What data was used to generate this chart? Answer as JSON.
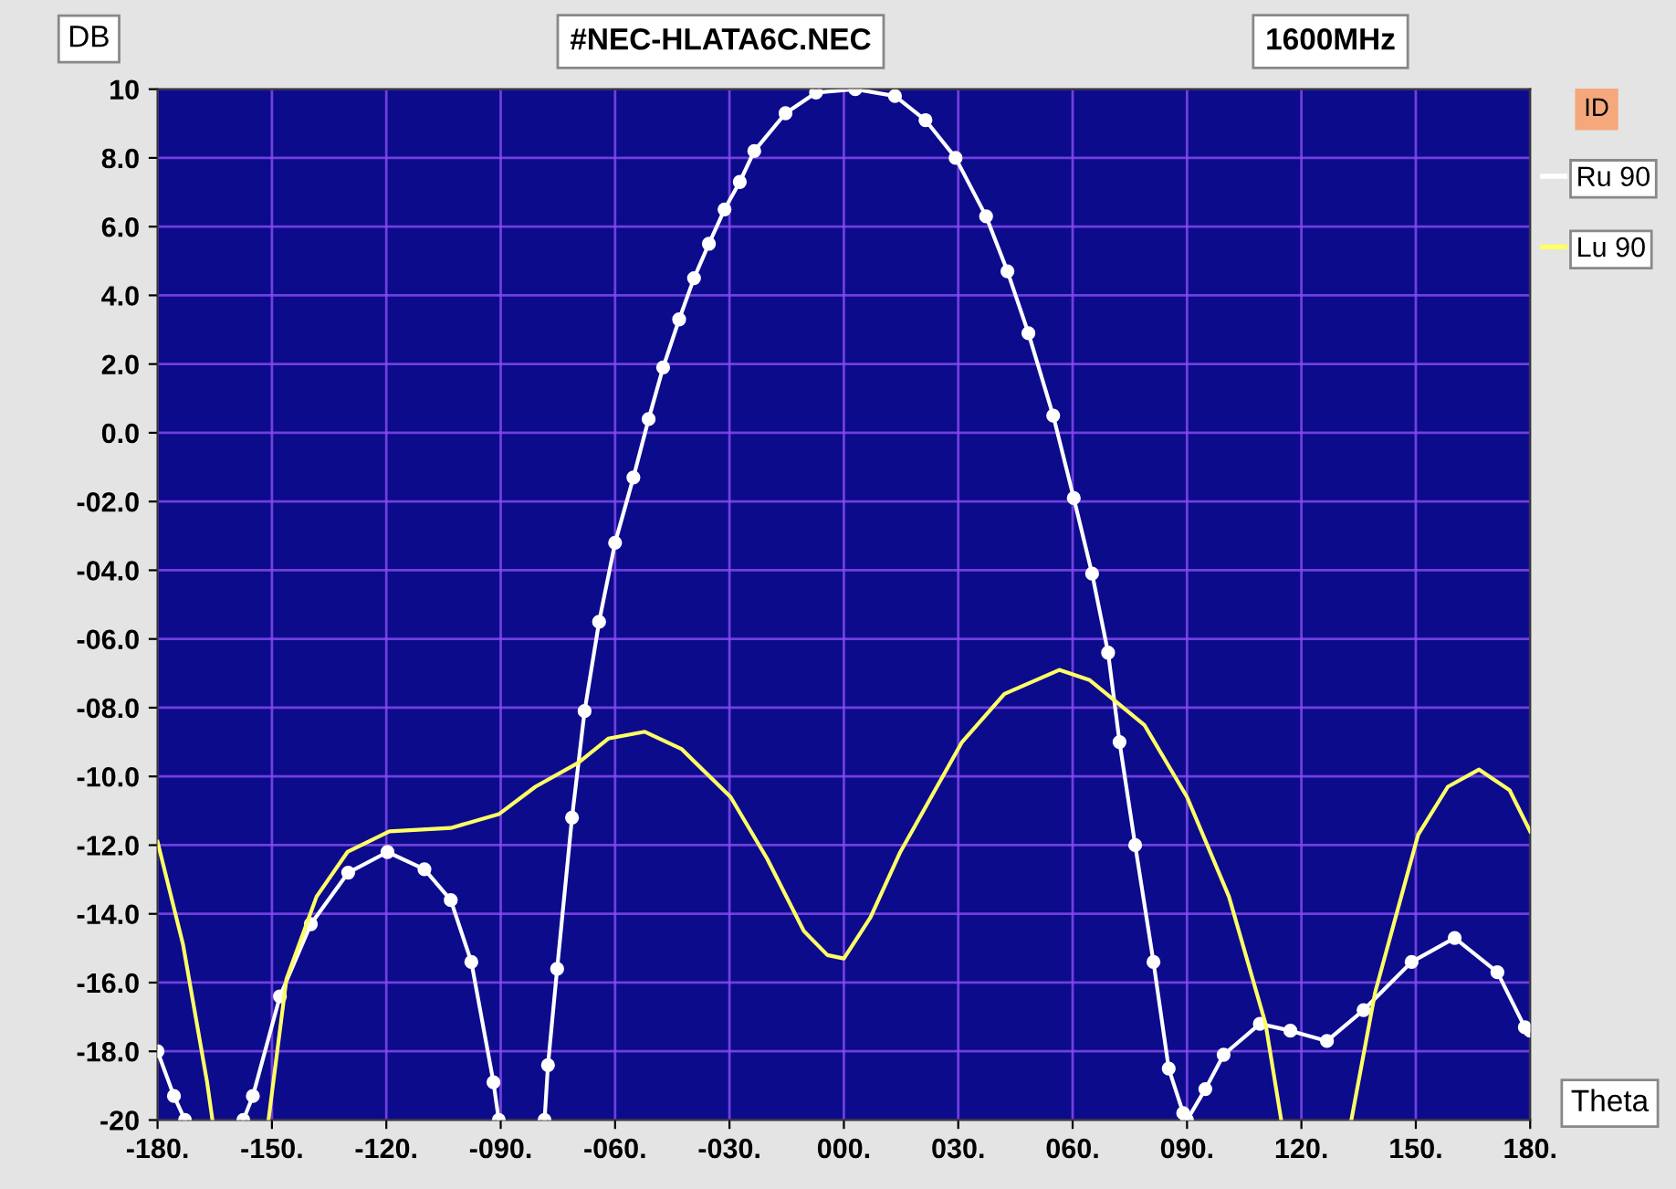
{
  "chart_data": {
    "type": "line",
    "title": "#NEC-HLATA6C.NEC",
    "subtitle": "1600MHz",
    "xlabel": "Theta",
    "ylabel": "DB",
    "legend_title": "ID",
    "xlim": [
      -180,
      180
    ],
    "ylim": [
      -20,
      10
    ],
    "xticks": [
      {
        "value": -180,
        "label": "-180."
      },
      {
        "value": -150,
        "label": "-150."
      },
      {
        "value": -120,
        "label": "-120."
      },
      {
        "value": -90,
        "label": "-090."
      },
      {
        "value": -60,
        "label": "-060."
      },
      {
        "value": -30,
        "label": "-030."
      },
      {
        "value": 0,
        "label": "000."
      },
      {
        "value": 30,
        "label": "030."
      },
      {
        "value": 60,
        "label": "060."
      },
      {
        "value": 90,
        "label": "090."
      },
      {
        "value": 120,
        "label": "120."
      },
      {
        "value": 150,
        "label": "150."
      },
      {
        "value": 180,
        "label": "180."
      }
    ],
    "yticks": [
      10,
      {
        "value": 8,
        "label": "8.0"
      },
      {
        "value": 6,
        "label": "6.0"
      },
      {
        "value": 4,
        "label": "4.0"
      },
      {
        "value": 2,
        "label": "2.0"
      },
      {
        "value": 0,
        "label": "0.0"
      },
      {
        "value": -2,
        "label": "-02.0"
      },
      {
        "value": -4,
        "label": "-04.0"
      },
      {
        "value": -6,
        "label": "-06.0"
      },
      {
        "value": -8,
        "label": "-08.0"
      },
      {
        "value": -10,
        "label": "-10.0"
      },
      {
        "value": -12,
        "label": "-12.0"
      },
      {
        "value": -14,
        "label": "-14.0"
      },
      {
        "value": -16,
        "label": "-16.0"
      },
      {
        "value": -18,
        "label": "-18.0"
      },
      -20
    ],
    "grid": true,
    "legend": "right",
    "series": [
      {
        "name": "Ru 90",
        "color": "#ffffff",
        "marker": "circle",
        "line_style": "solid",
        "x": [
          -180,
          -175.7,
          -172.8,
          -165,
          -157.5,
          -155,
          -147.9,
          -139.8,
          -130,
          -119.7,
          -110,
          -103.1,
          -97.7,
          -91.9,
          -90.5,
          -85,
          -78.5,
          -77.6,
          -75.2,
          -71.3,
          -68,
          -64.2,
          -60,
          -55.2,
          -51.2,
          -47.4,
          -43.2,
          -39.3,
          -35.4,
          -31.3,
          -27.3,
          -23.5,
          -15.3,
          -7.3,
          3,
          13.4,
          21.4,
          29.3,
          37.3,
          42.9,
          48.4,
          54.9,
          60.3,
          65.1,
          69.3,
          72.3,
          76.4,
          81.2,
          85.2,
          89,
          90,
          94.8,
          99.6,
          109.1,
          117.1,
          126.7,
          136.3,
          148.9,
          160.2,
          171.4,
          178.6,
          180
        ],
        "values": [
          -18.0,
          -19.3,
          -20,
          null,
          -20,
          -19.3,
          -16.4,
          -14.3,
          -12.8,
          -12.2,
          -12.7,
          -13.6,
          -15.4,
          -18.9,
          -20,
          null,
          -20,
          -18.4,
          -15.6,
          -11.2,
          -8.1,
          -5.5,
          -3.2,
          -1.3,
          0.4,
          1.9,
          3.3,
          4.5,
          5.5,
          6.5,
          7.3,
          8.2,
          9.3,
          9.9,
          10.0,
          9.8,
          9.1,
          8.0,
          6.3,
          4.7,
          2.9,
          0.5,
          -1.9,
          -4.1,
          -6.4,
          -9.0,
          -12.0,
          -15.4,
          -18.5,
          -19.8,
          -20,
          -19.1,
          -18.1,
          -17.2,
          -17.4,
          -17.7,
          -16.8,
          -15.4,
          -14.7,
          -15.7,
          -17.3,
          -17.4
        ]
      },
      {
        "name": "Lu 90",
        "color": "#ffff66",
        "marker": "none",
        "line_style": "solid",
        "x": [
          -180,
          -173.3,
          -167,
          -165.6,
          -158,
          -150.9,
          -146.2,
          -138.3,
          -130.2,
          -119.2,
          -103.1,
          -90.5,
          -80.9,
          -69.6,
          -61.8,
          -52.2,
          -42.6,
          -29.7,
          -20.1,
          -10.5,
          -4.3,
          0,
          7,
          14.8,
          31,
          42.1,
          56.5,
          64.5,
          78.8,
          90,
          101,
          110.6,
          114.7,
          124,
          133.1,
          139.3,
          150.6,
          158.4,
          166.6,
          174.6,
          180
        ],
        "values": [
          -11.9,
          -14.9,
          -18.9,
          -20,
          null,
          -20,
          -15.9,
          -13.5,
          -12.2,
          -11.6,
          -11.5,
          -11.1,
          -10.3,
          -9.6,
          -8.9,
          -8.7,
          -9.2,
          -10.6,
          -12.4,
          -14.5,
          -15.2,
          -15.3,
          -14.1,
          -12.2,
          -9.0,
          -7.6,
          -6.9,
          -7.2,
          -8.5,
          -10.6,
          -13.5,
          -17.2,
          -20,
          null,
          -20,
          -16.3,
          -11.7,
          -10.3,
          -9.8,
          -10.4,
          -11.6
        ]
      }
    ]
  }
}
